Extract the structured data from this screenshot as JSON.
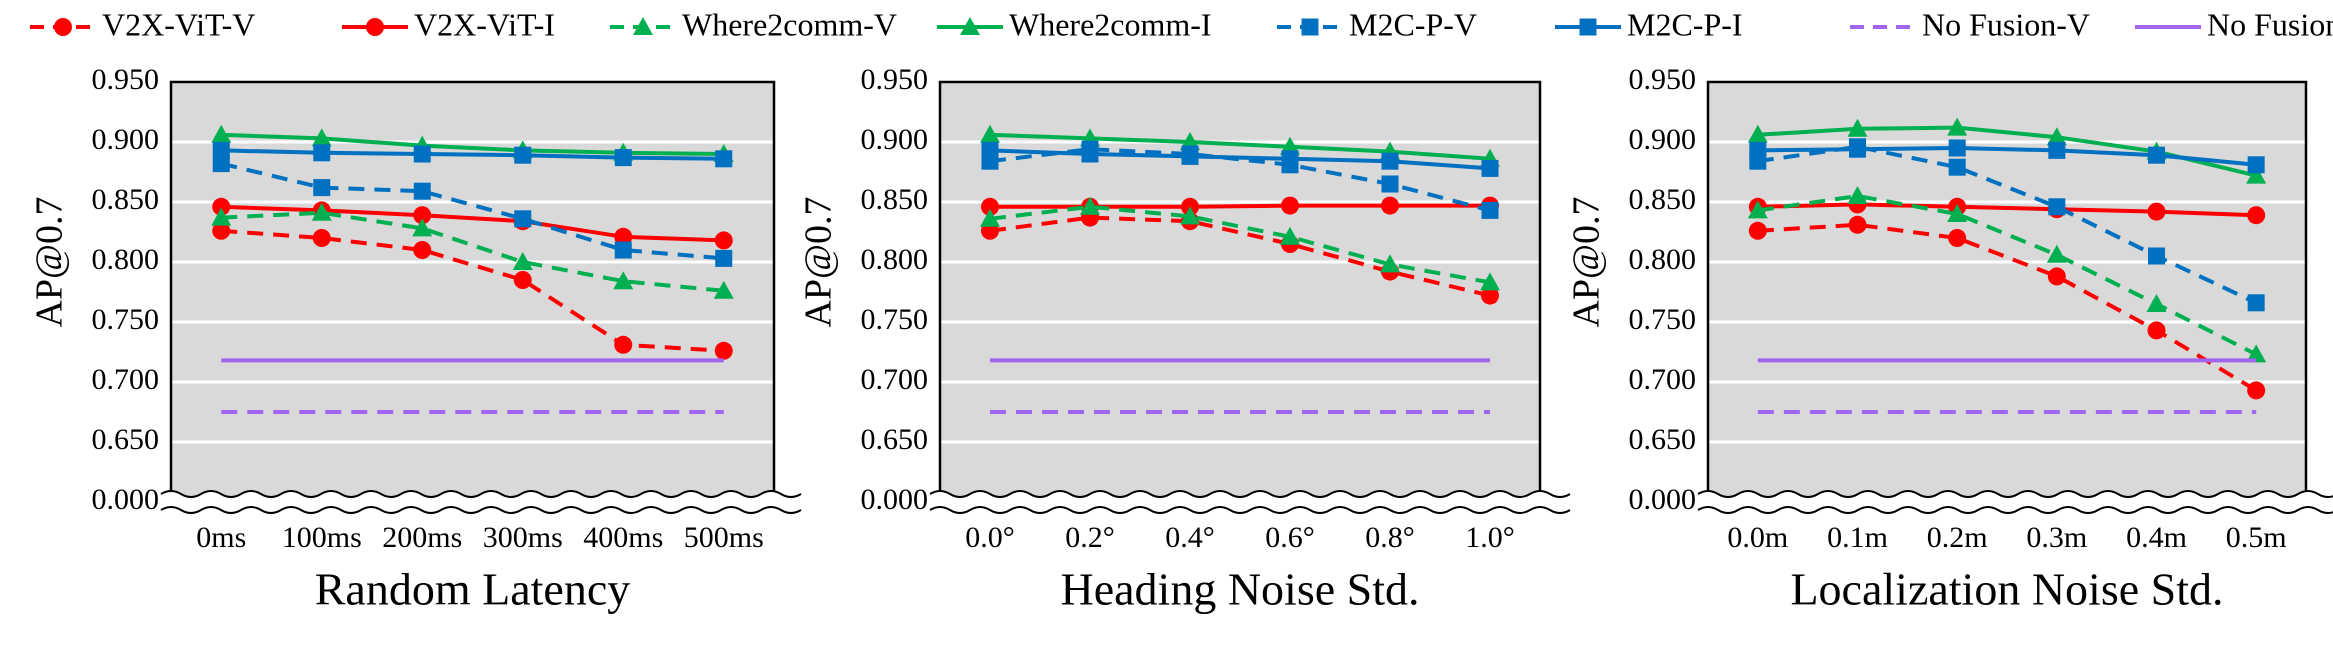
{
  "chart_data": [
    {
      "type": "line",
      "xlabel": "Random Latency",
      "ylabel": "AP@0.7",
      "categories": [
        "0ms",
        "100ms",
        "200ms",
        "300ms",
        "400ms",
        "500ms"
      ],
      "ylim": [
        0,
        0.95
      ],
      "ybreak": [
        0,
        0.6
      ],
      "grid": true,
      "legend": "top",
      "yticks": [
        {
          "value": 0,
          "label": "0.000"
        },
        {
          "value": 0.65,
          "label": "0.650"
        },
        {
          "value": 0.7,
          "label": "0.700"
        },
        {
          "value": 0.75,
          "label": "0.750"
        },
        {
          "value": 0.8,
          "label": "0.800"
        },
        {
          "value": 0.85,
          "label": "0.850"
        },
        {
          "value": 0.9,
          "label": "0.900"
        },
        {
          "value": 0.95,
          "label": "0.950"
        }
      ],
      "series": [
        {
          "name": "V2X-ViT-V",
          "color": "#ff0000",
          "dash": true,
          "marker": "circle",
          "values": [
            0.826,
            0.82,
            0.81,
            0.785,
            0.731,
            0.726
          ]
        },
        {
          "name": "V2X-ViT-I",
          "color": "#ff0000",
          "dash": false,
          "marker": "circle",
          "values": [
            0.846,
            0.843,
            0.839,
            0.834,
            0.821,
            0.818
          ]
        },
        {
          "name": "Where2comm-V",
          "color": "#00b050",
          "dash": true,
          "marker": "triangle",
          "values": [
            0.837,
            0.841,
            0.828,
            0.8,
            0.784,
            0.776
          ]
        },
        {
          "name": "Where2comm-I",
          "color": "#00b050",
          "dash": false,
          "marker": "triangle",
          "values": [
            0.906,
            0.903,
            0.897,
            0.893,
            0.891,
            0.89
          ]
        },
        {
          "name": "M2C-P-V",
          "color": "#0070c0",
          "dash": true,
          "marker": "square",
          "values": [
            0.882,
            0.862,
            0.859,
            0.836,
            0.81,
            0.803
          ]
        },
        {
          "name": "M2C-P-I",
          "color": "#0070c0",
          "dash": false,
          "marker": "square",
          "values": [
            0.893,
            0.891,
            0.89,
            0.889,
            0.887,
            0.886
          ]
        },
        {
          "name": "No Fusion-V",
          "color": "#a066f0",
          "dash": true,
          "marker": null,
          "values": [
            0.675,
            0.675,
            0.675,
            0.675,
            0.675,
            0.675
          ]
        },
        {
          "name": "No Fusion-I",
          "color": "#a066f0",
          "dash": false,
          "marker": null,
          "values": [
            0.718,
            0.718,
            0.718,
            0.718,
            0.718,
            0.718
          ]
        }
      ]
    },
    {
      "type": "line",
      "xlabel": "Heading Noise Std.",
      "ylabel": "AP@0.7",
      "categories": [
        "0.0°",
        "0.2°",
        "0.4°",
        "0.6°",
        "0.8°",
        "1.0°"
      ],
      "ylim": [
        0,
        0.95
      ],
      "ybreak": [
        0,
        0.6
      ],
      "grid": true,
      "yticks": [
        {
          "value": 0,
          "label": "0.000"
        },
        {
          "value": 0.65,
          "label": "0.650"
        },
        {
          "value": 0.7,
          "label": "0.700"
        },
        {
          "value": 0.75,
          "label": "0.750"
        },
        {
          "value": 0.8,
          "label": "0.800"
        },
        {
          "value": 0.85,
          "label": "0.850"
        },
        {
          "value": 0.9,
          "label": "0.900"
        },
        {
          "value": 0.95,
          "label": "0.950"
        }
      ],
      "series": [
        {
          "color": "#ff0000",
          "dash": true,
          "marker": "circle",
          "values": [
            0.826,
            0.837,
            0.834,
            0.815,
            0.792,
            0.772
          ]
        },
        {
          "color": "#ff0000",
          "dash": false,
          "marker": "circle",
          "values": [
            0.846,
            0.846,
            0.846,
            0.847,
            0.847,
            0.847
          ]
        },
        {
          "color": "#00b050",
          "dash": true,
          "marker": "triangle",
          "values": [
            0.836,
            0.846,
            0.838,
            0.821,
            0.798,
            0.783
          ]
        },
        {
          "color": "#00b050",
          "dash": false,
          "marker": "triangle",
          "values": [
            0.906,
            0.903,
            0.9,
            0.896,
            0.892,
            0.886
          ]
        },
        {
          "color": "#0070c0",
          "dash": true,
          "marker": "square",
          "values": [
            0.884,
            0.894,
            0.89,
            0.881,
            0.865,
            0.843
          ]
        },
        {
          "color": "#0070c0",
          "dash": false,
          "marker": "square",
          "values": [
            0.893,
            0.89,
            0.888,
            0.886,
            0.884,
            0.878
          ]
        },
        {
          "color": "#a066f0",
          "dash": true,
          "marker": null,
          "values": [
            0.675,
            0.675,
            0.675,
            0.675,
            0.675,
            0.675
          ]
        },
        {
          "color": "#a066f0",
          "dash": false,
          "marker": null,
          "values": [
            0.718,
            0.718,
            0.718,
            0.718,
            0.718,
            0.718
          ]
        }
      ]
    },
    {
      "type": "line",
      "xlabel": "Localization Noise Std.",
      "ylabel": "AP@0.7",
      "categories": [
        "0.0m",
        "0.1m",
        "0.2m",
        "0.3m",
        "0.4m",
        "0.5m"
      ],
      "ylim": [
        0,
        0.95
      ],
      "ybreak": [
        0,
        0.6
      ],
      "grid": true,
      "yticks": [
        {
          "value": 0,
          "label": "0.000"
        },
        {
          "value": 0.65,
          "label": "0.650"
        },
        {
          "value": 0.7,
          "label": "0.700"
        },
        {
          "value": 0.75,
          "label": "0.750"
        },
        {
          "value": 0.8,
          "label": "0.800"
        },
        {
          "value": 0.85,
          "label": "0.850"
        },
        {
          "value": 0.9,
          "label": "0.900"
        },
        {
          "value": 0.95,
          "label": "0.950"
        }
      ],
      "series": [
        {
          "color": "#ff0000",
          "dash": true,
          "marker": "circle",
          "values": [
            0.826,
            0.831,
            0.82,
            0.788,
            0.743,
            0.693
          ]
        },
        {
          "color": "#ff0000",
          "dash": false,
          "marker": "circle",
          "values": [
            0.846,
            0.848,
            0.846,
            0.844,
            0.842,
            0.839
          ]
        },
        {
          "color": "#00b050",
          "dash": true,
          "marker": "triangle",
          "values": [
            0.843,
            0.855,
            0.84,
            0.806,
            0.765,
            0.723
          ]
        },
        {
          "color": "#00b050",
          "dash": false,
          "marker": "triangle",
          "values": [
            0.906,
            0.911,
            0.912,
            0.904,
            0.892,
            0.872
          ]
        },
        {
          "color": "#0070c0",
          "dash": true,
          "marker": "square",
          "values": [
            0.884,
            0.896,
            0.879,
            0.846,
            0.805,
            0.766
          ]
        },
        {
          "color": "#0070c0",
          "dash": false,
          "marker": "square",
          "values": [
            0.893,
            0.894,
            0.895,
            0.893,
            0.889,
            0.881
          ]
        },
        {
          "color": "#a066f0",
          "dash": true,
          "marker": null,
          "values": [
            0.675,
            0.675,
            0.675,
            0.675,
            0.675,
            0.675
          ]
        },
        {
          "color": "#a066f0",
          "dash": false,
          "marker": null,
          "values": [
            0.718,
            0.718,
            0.718,
            0.718,
            0.718,
            0.718
          ]
        }
      ]
    }
  ]
}
